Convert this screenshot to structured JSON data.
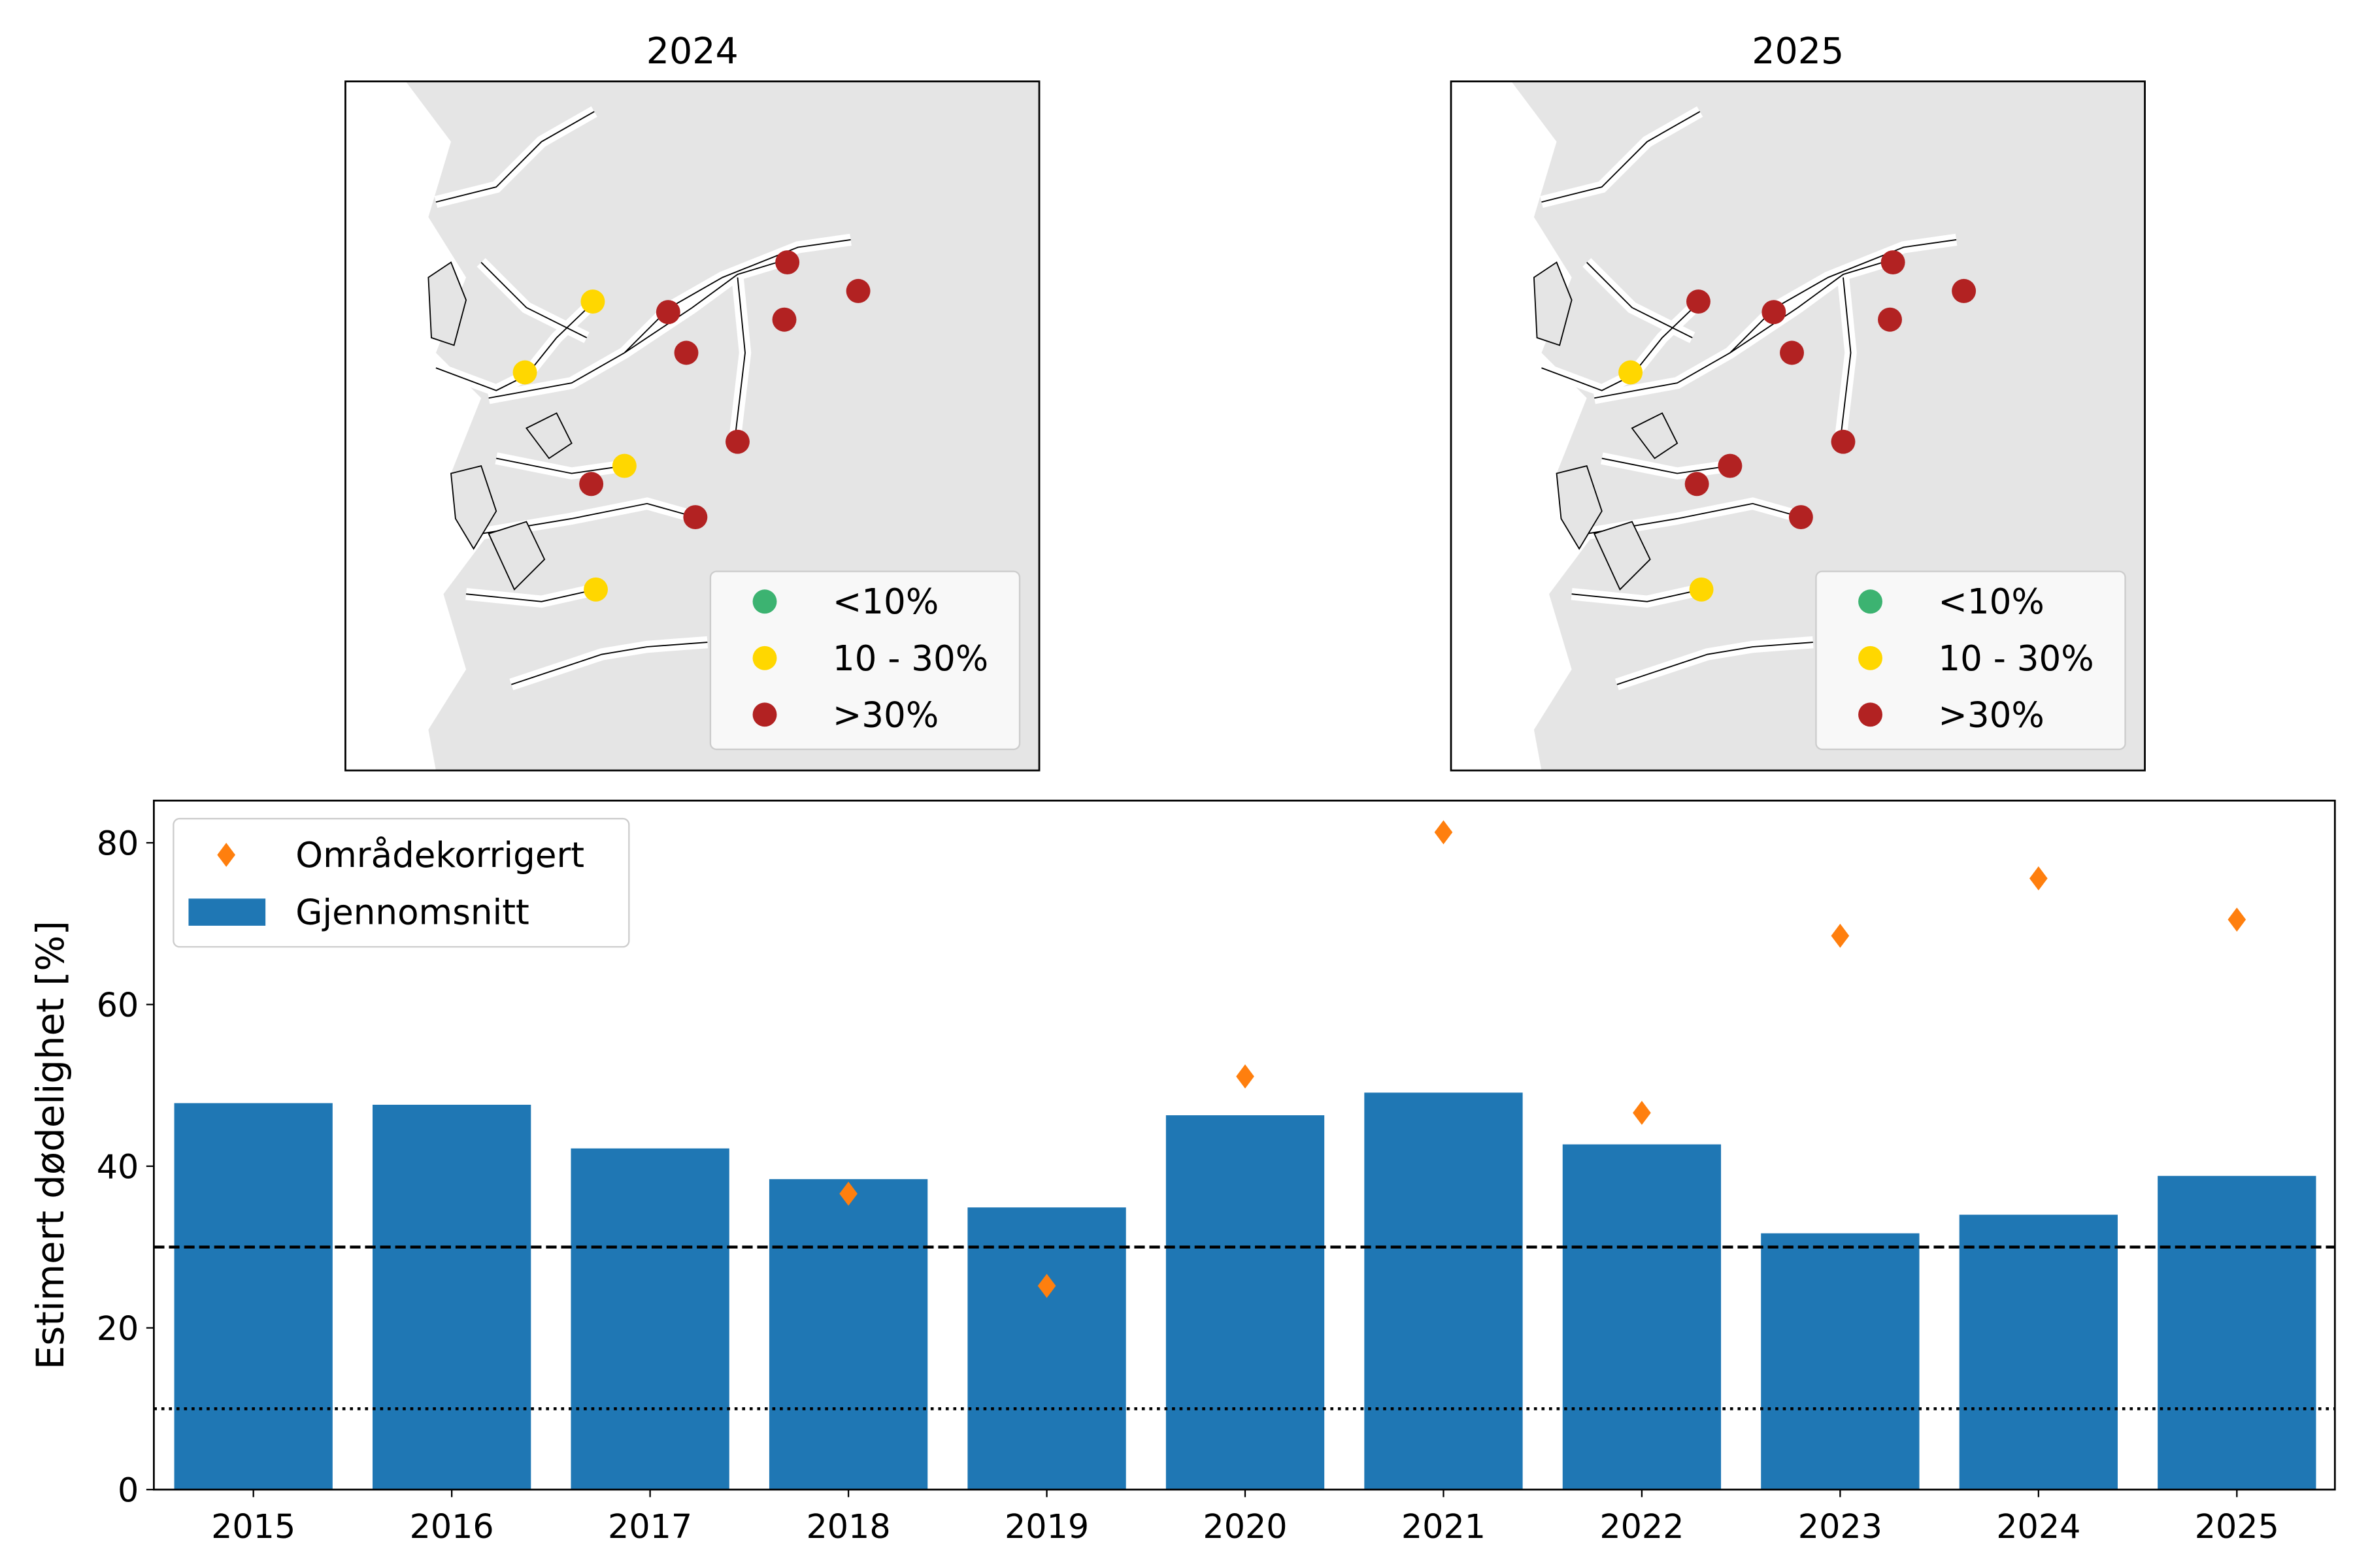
{
  "maps": [
    {
      "title": "2024",
      "site_categories": [
        "mid",
        "mid",
        "high",
        "high",
        "high",
        "high",
        "high",
        "high",
        "mid",
        "high",
        "high",
        "mid"
      ]
    },
    {
      "title": "2025",
      "site_categories": [
        "high",
        "mid",
        "high",
        "high",
        "high",
        "high",
        "high",
        "high",
        "high",
        "high",
        "high",
        "mid"
      ]
    }
  ],
  "map_legend": [
    {
      "key": "low",
      "label": "<10%",
      "color": "#3cb371"
    },
    {
      "key": "mid",
      "label": "10 - 30%",
      "color": "#ffd700"
    },
    {
      "key": "high",
      "label": ">30%",
      "color": "#b22222"
    }
  ],
  "map_colors": {
    "land": "#e5e5e5",
    "sea": "#ffffff"
  },
  "chart_data": {
    "type": "bar",
    "categories": [
      "2015",
      "2016",
      "2017",
      "2018",
      "2019",
      "2020",
      "2021",
      "2022",
      "2023",
      "2024",
      "2025"
    ],
    "series": [
      {
        "name": "Gjennomsnitt",
        "kind": "bar",
        "color": "#1f77b4",
        "values": [
          47.8,
          47.6,
          42.2,
          38.4,
          34.9,
          46.3,
          49.1,
          42.7,
          31.7,
          34.0,
          38.8
        ]
      },
      {
        "name": "Områdekorrigert",
        "kind": "scatter",
        "marker": "diamond",
        "color": "#ff7f0e",
        "values": [
          null,
          null,
          null,
          36.6,
          25.2,
          51.1,
          81.3,
          46.6,
          68.5,
          75.6,
          70.5
        ]
      }
    ],
    "reference_lines": [
      {
        "y": 30,
        "style": "dashed",
        "color": "#000000"
      },
      {
        "y": 10,
        "style": "dotted",
        "color": "#000000"
      }
    ],
    "xlabel": "",
    "ylabel": "Estimert dødelighet [%]",
    "ylim": [
      0,
      85
    ],
    "yticks": [
      "0",
      "20",
      "40",
      "60",
      "80"
    ],
    "grid": false,
    "legend": "top-left"
  }
}
